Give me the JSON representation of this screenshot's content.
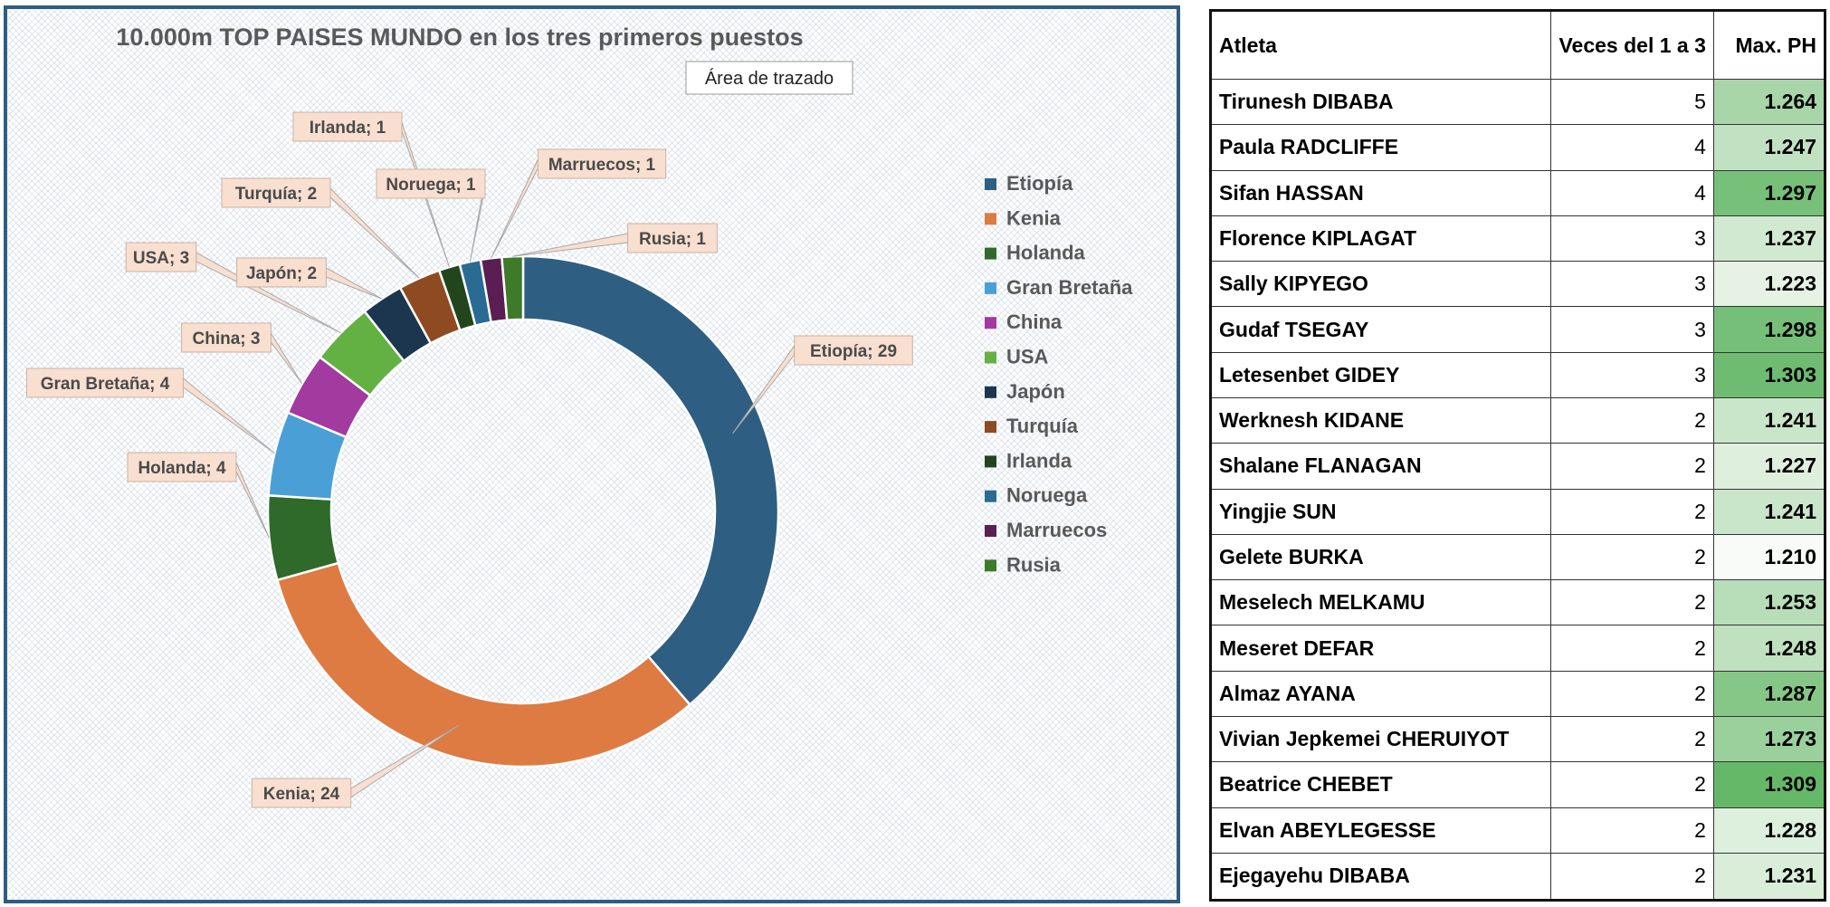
{
  "chart_data": {
    "type": "donut",
    "title": "10.000m TOP PAISES MUNDO en los tres primeros puestos",
    "tooltip": "Área de trazado",
    "legend_position": "right",
    "categories": [
      "Etiopía",
      "Kenia",
      "Holanda",
      "Gran Bretaña",
      "China",
      "USA",
      "Japón",
      "Turquía",
      "Irlanda",
      "Noruega",
      "Marruecos",
      "Rusia"
    ],
    "values": [
      29,
      24,
      4,
      4,
      3,
      3,
      2,
      2,
      1,
      1,
      1,
      1
    ],
    "data_labels": [
      "Etiopía; 29",
      "Kenia; 24",
      "Holanda; 4",
      "Gran Bretaña; 4",
      "China; 3",
      "USA; 3",
      "Japón; 2",
      "Turquía; 2",
      "Irlanda; 1",
      "Noruega; 1",
      "Marruecos; 1",
      "Rusia; 1"
    ],
    "colors": [
      "#2e5f82",
      "#dd7b43",
      "#2f6a2a",
      "#4aa0d6",
      "#a23aa0",
      "#63b043",
      "#1c364f",
      "#8e4a20",
      "#22451e",
      "#2a6b94",
      "#5a1e52",
      "#3d7a2a"
    ]
  },
  "table": {
    "headers": [
      "Atleta",
      "Veces del 1 a 3",
      "Max. PH"
    ],
    "rows": [
      {
        "name": "Tirunesh DIBABA",
        "count": "5",
        "ph": "1.264"
      },
      {
        "name": "Paula RADCLIFFE",
        "count": "4",
        "ph": "1.247"
      },
      {
        "name": "Sifan HASSAN",
        "count": "4",
        "ph": "1.297"
      },
      {
        "name": "Florence KIPLAGAT",
        "count": "3",
        "ph": "1.237"
      },
      {
        "name": "Sally KIPYEGO",
        "count": "3",
        "ph": "1.223"
      },
      {
        "name": "Gudaf TSEGAY",
        "count": "3",
        "ph": "1.298"
      },
      {
        "name": "Letesenbet GIDEY",
        "count": "3",
        "ph": "1.303"
      },
      {
        "name": "Werknesh KIDANE",
        "count": "2",
        "ph": "1.241"
      },
      {
        "name": "Shalane FLANAGAN",
        "count": "2",
        "ph": "1.227"
      },
      {
        "name": "Yingjie SUN",
        "count": "2",
        "ph": "1.241"
      },
      {
        "name": "Gelete BURKA",
        "count": "2",
        "ph": "1.210"
      },
      {
        "name": "Meselech MELKAMU",
        "count": "2",
        "ph": "1.253"
      },
      {
        "name": "Meseret DEFAR",
        "count": "2",
        "ph": "1.248"
      },
      {
        "name": "Almaz AYANA",
        "count": "2",
        "ph": "1.287"
      },
      {
        "name": "Vivian Jepkemei CHERUIYOT",
        "count": "2",
        "ph": "1.273"
      },
      {
        "name": "Beatrice CHEBET",
        "count": "2",
        "ph": "1.309"
      },
      {
        "name": "Elvan ABEYLEGESSE",
        "count": "2",
        "ph": "1.228"
      },
      {
        "name": "Ejegayehu DIBABA",
        "count": "2",
        "ph": "1.231"
      }
    ]
  }
}
